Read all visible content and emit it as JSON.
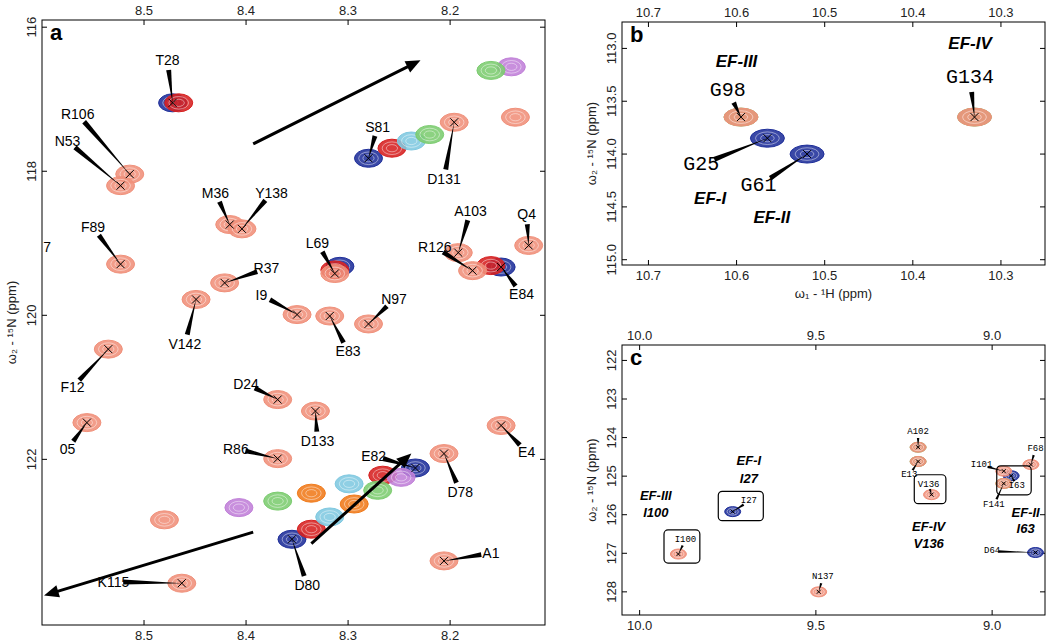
{
  "chart_data": [
    {
      "type": "scatter",
      "title": "a",
      "y_label": "ω₂ - ¹⁵N (ppm)",
      "xlim": [
        8.6,
        8.107
      ],
      "ylim": [
        115.9,
        124.3
      ],
      "xticks": [
        8.5,
        8.4,
        8.3,
        8.2
      ],
      "yticks": [
        116,
        118,
        120,
        122
      ],
      "series": [
        {
          "color": "#1f2f9a",
          "x": [
            8.472,
            8.28,
            8.308,
            8.15,
            8.234,
            8.355
          ],
          "values": [
            117.05,
            117.82,
            119.32,
            119.33,
            122.12,
            123.11
          ]
        },
        {
          "color": "#d62020",
          "x": [
            8.466,
            8.257,
            8.313,
            8.16,
            8.266,
            8.336
          ],
          "values": [
            117.05,
            117.68,
            119.37,
            119.31,
            122.22,
            122.97
          ]
        },
        {
          "color": "#7fc8e0",
          "x": [
            8.238,
            8.299,
            8.318
          ],
          "values": [
            117.58,
            122.34,
            122.8
          ]
        },
        {
          "color": "#c080d8",
          "x": [
            8.407,
            8.248,
            8.14
          ],
          "values": [
            122.67,
            122.25,
            116.55
          ]
        },
        {
          "color": "#7ccc70",
          "x": [
            8.22,
            8.369,
            8.271,
            8.16
          ],
          "values": [
            117.49,
            122.58,
            122.43,
            116.6
          ]
        },
        {
          "color": "#f07a1a",
          "x": [
            8.336,
            8.294
          ],
          "values": [
            122.47,
            122.62
          ]
        },
        {
          "color": "#f0907a",
          "x": [
            8.196,
            8.136,
            8.514,
            8.523,
            8.416,
            8.404,
            8.192,
            8.123,
            8.523,
            8.421,
            8.449,
            8.35,
            8.318,
            8.28,
            8.178,
            8.313,
            8.535,
            8.556,
            8.369,
            8.332,
            8.15,
            8.369,
            8.206,
            8.463,
            8.206,
            8.48
          ],
          "values": [
            117.32,
            117.25,
            118.04,
            118.2,
            118.74,
            118.8,
            119.13,
            119.03,
            119.29,
            119.55,
            119.78,
            119.99,
            120.01,
            120.12,
            119.38,
            119.42,
            120.47,
            121.49,
            121.17,
            121.33,
            121.53,
            121.99,
            121.92,
            123.72,
            123.41,
            122.84
          ]
        }
      ],
      "annotations": [
        {
          "text": "T28",
          "x": 8.472,
          "y": 117.05,
          "text_x": 8.477,
          "text_y": 116.46
        },
        {
          "text": "S81",
          "x": 8.28,
          "y": 117.82,
          "text_x": 8.271,
          "text_y": 117.38
        },
        {
          "text": "D131",
          "x": 8.196,
          "y": 117.32,
          "text_x": 8.206,
          "text_y": 118.11
        },
        {
          "text": "R106",
          "x": 8.514,
          "y": 118.04,
          "text_x": 8.565,
          "text_y": 117.21
        },
        {
          "text": "N53",
          "x": 8.523,
          "y": 118.2,
          "text_x": 8.575,
          "text_y": 117.58
        },
        {
          "text": "M36",
          "x": 8.416,
          "y": 118.74,
          "text_x": 8.43,
          "text_y": 118.3
        },
        {
          "text": "Y138",
          "x": 8.404,
          "y": 118.8,
          "text_x": 8.375,
          "text_y": 118.3
        },
        {
          "text": "A103",
          "x": 8.192,
          "y": 119.13,
          "text_x": 8.18,
          "text_y": 118.55
        },
        {
          "text": "Q4",
          "x": 8.123,
          "y": 119.03,
          "text_x": 8.125,
          "text_y": 118.6
        },
        {
          "text": "F89",
          "x": 8.523,
          "y": 119.29,
          "text_x": 8.55,
          "text_y": 118.78
        },
        {
          "text": "L69",
          "x": 8.313,
          "y": 119.42,
          "text_x": 8.33,
          "text_y": 119.0
        },
        {
          "text": "R126",
          "x": 8.178,
          "y": 119.38,
          "text_x": 8.215,
          "text_y": 119.05
        },
        {
          "text": "E84",
          "x": 8.15,
          "y": 119.33,
          "text_x": 8.13,
          "text_y": 119.7
        },
        {
          "text": "R37",
          "x": 8.421,
          "y": 119.55,
          "text_x": 8.38,
          "text_y": 119.35
        },
        {
          "text": "V142",
          "x": 8.449,
          "y": 119.78,
          "text_x": 8.46,
          "text_y": 120.4
        },
        {
          "text": "I9",
          "x": 8.35,
          "y": 119.99,
          "text_x": 8.385,
          "text_y": 119.72
        },
        {
          "text": "E83",
          "x": 8.318,
          "y": 120.01,
          "text_x": 8.3,
          "text_y": 120.5
        },
        {
          "text": "N97",
          "x": 8.28,
          "y": 120.12,
          "text_x": 8.255,
          "text_y": 119.78
        },
        {
          "text": "F12",
          "x": 8.535,
          "y": 120.47,
          "text_x": 8.57,
          "text_y": 121.0
        },
        {
          "text": "05",
          "x": 8.556,
          "y": 121.49,
          "text_x": 8.575,
          "text_y": 121.86
        },
        {
          "text": "D24",
          "x": 8.369,
          "y": 121.17,
          "text_x": 8.4,
          "text_y": 120.95
        },
        {
          "text": "D133",
          "x": 8.332,
          "y": 121.33,
          "text_x": 8.33,
          "text_y": 121.75
        },
        {
          "text": "E4",
          "x": 8.15,
          "y": 121.53,
          "text_x": 8.125,
          "text_y": 121.9
        },
        {
          "text": "R86",
          "x": 8.369,
          "y": 121.99,
          "text_x": 8.41,
          "text_y": 121.85
        },
        {
          "text": "D78",
          "x": 8.206,
          "y": 121.92,
          "text_x": 8.19,
          "text_y": 122.45
        },
        {
          "text": "E82",
          "x": 8.234,
          "y": 122.12,
          "text_x": 8.275,
          "text_y": 121.95
        },
        {
          "text": "K115",
          "x": 8.463,
          "y": 123.72,
          "text_x": 8.53,
          "text_y": 123.7
        },
        {
          "text": "D80",
          "x": 8.355,
          "y": 123.11,
          "text_x": 8.34,
          "text_y": 123.75
        },
        {
          "text": "A1",
          "x": 8.206,
          "y": 123.41,
          "text_x": 8.16,
          "text_y": 123.3
        }
      ],
      "labels": [
        {
          "text": "7",
          "x": 8.595,
          "y": 119.05
        }
      ],
      "arrows": [
        {
          "from": [
            8.393,
            117.62
          ],
          "to": [
            8.229,
            116.46
          ]
        },
        {
          "from": [
            8.393,
            123.01
          ],
          "to": [
            8.598,
            123.89
          ]
        },
        {
          "from": [
            8.336,
            123.17
          ],
          "to": [
            8.238,
            121.92
          ]
        }
      ]
    },
    {
      "type": "scatter",
      "title": "b",
      "x_label": "ω₁ - ¹H (ppm)",
      "y_label": "ω₂ - ¹⁵N (ppm)",
      "xlim": [
        10.73,
        10.25
      ],
      "ylim": [
        112.75,
        115.05
      ],
      "xticks": [
        10.7,
        10.6,
        10.5,
        10.4,
        10.3
      ],
      "yticks": [
        {
          "value": 113,
          "label": "113.0"
        },
        113.5,
        {
          "value": 114,
          "label": "114.0"
        },
        114.5,
        {
          "value": 115,
          "label": "115.0"
        }
      ],
      "series": [
        {
          "color": "#1f2f9a",
          "x": [
            10.565,
            10.52
          ],
          "values": [
            113.85,
            114.0
          ]
        },
        {
          "color": "#7ccc70",
          "x": [
            10.595,
            10.33
          ],
          "values": [
            113.65,
            113.65
          ]
        },
        {
          "color": "#f0907a",
          "x": [
            10.595,
            10.33
          ],
          "values": [
            113.65,
            113.65
          ]
        }
      ],
      "annotations": [
        {
          "text": "G98",
          "x": 10.595,
          "y": 113.65,
          "text_x": 10.61,
          "text_y": 113.4
        },
        {
          "text": "G25",
          "x": 10.565,
          "y": 113.85,
          "text_x": 10.64,
          "text_y": 114.1
        },
        {
          "text": "G61",
          "x": 10.52,
          "y": 114.0,
          "text_x": 10.575,
          "text_y": 114.3
        },
        {
          "text": "G134",
          "x": 10.33,
          "y": 113.65,
          "text_x": 10.335,
          "text_y": 113.28
        }
      ],
      "labels": [
        {
          "text": "EF-III",
          "x": 10.6,
          "y": 113.12
        },
        {
          "text": "EF-I",
          "x": 10.63,
          "y": 114.42
        },
        {
          "text": "EF-II",
          "x": 10.56,
          "y": 114.6
        },
        {
          "text": "EF-IV",
          "x": 10.335,
          "y": 112.95
        }
      ]
    },
    {
      "type": "scatter",
      "title": "c",
      "y_label": "ω₂ - ¹⁵N (ppm)",
      "xlim": [
        10.05,
        8.85
      ],
      "ylim": [
        121.6,
        128.6
      ],
      "xticks": [
        {
          "value": 10,
          "label": "10.0"
        },
        9.5,
        {
          "value": 9,
          "label": "9.0"
        }
      ],
      "yticks": [
        122,
        123,
        124,
        125,
        126,
        127,
        128
      ],
      "series": [
        {
          "color": "#1f2f9a",
          "x": [
            9.736,
            8.946,
            8.877
          ],
          "values": [
            125.92,
            124.99,
            126.98
          ]
        },
        {
          "color": "#7ccc70",
          "x": [
            9.21,
            9.21,
            8.967
          ],
          "values": [
            124.25,
            124.62,
            125.19
          ]
        },
        {
          "color": "#f0907a",
          "x": [
            9.89,
            9.21,
            9.21,
            9.172,
            8.967,
            8.967,
            8.89,
            9.492
          ],
          "values": [
            127.02,
            124.25,
            124.62,
            125.48,
            124.87,
            125.19,
            124.7,
            128.0
          ]
        }
      ],
      "annotations": [
        {
          "text": "I100",
          "x": 9.89,
          "y": 127.02,
          "text_x": 9.87,
          "text_y": 126.65,
          "boxed": true
        },
        {
          "text": "I27",
          "x": 9.736,
          "y": 125.92,
          "text_x": 9.69,
          "text_y": 125.65,
          "boxed": true
        },
        {
          "text": "A102",
          "x": 9.21,
          "y": 124.25,
          "text_x": 9.21,
          "text_y": 123.85
        },
        {
          "text": "E13",
          "x": 9.21,
          "y": 124.62,
          "text_x": 9.235,
          "text_y": 124.98
        },
        {
          "text": "V136",
          "x": 9.172,
          "y": 125.48,
          "text_x": 9.18,
          "text_y": 125.22,
          "boxed": true
        },
        {
          "text": "I101",
          "x": 8.967,
          "y": 124.87,
          "text_x": 9.03,
          "text_y": 124.72
        },
        {
          "text": "I63",
          "x": 8.946,
          "y": 124.99,
          "text_x": 8.93,
          "text_y": 125.25,
          "boxed": true
        },
        {
          "text": "F141",
          "x": 8.967,
          "y": 125.19,
          "text_x": 8.995,
          "text_y": 125.75
        },
        {
          "text": "F68",
          "x": 8.89,
          "y": 124.7,
          "text_x": 8.877,
          "text_y": 124.3
        },
        {
          "text": "D64",
          "x": 8.877,
          "y": 126.98,
          "text_x": 9.0,
          "text_y": 126.95
        },
        {
          "text": "N137",
          "x": 9.492,
          "y": 128.0,
          "text_x": 9.48,
          "text_y": 127.62
        }
      ],
      "labels": [
        {
          "text": "EF-III",
          "x": 9.954,
          "y": 125.5
        },
        {
          "text": "I100",
          "x": 9.954,
          "y": 125.95
        },
        {
          "text": "EF-I",
          "x": 9.69,
          "y": 124.6
        },
        {
          "text": "I27",
          "x": 9.69,
          "y": 125.05
        },
        {
          "text": "EF-IV",
          "x": 9.18,
          "y": 126.3
        },
        {
          "text": "V136",
          "x": 9.18,
          "y": 126.75
        },
        {
          "text": "EF-II",
          "x": 8.905,
          "y": 125.95
        },
        {
          "text": "I63",
          "x": 8.905,
          "y": 126.35
        }
      ]
    }
  ]
}
